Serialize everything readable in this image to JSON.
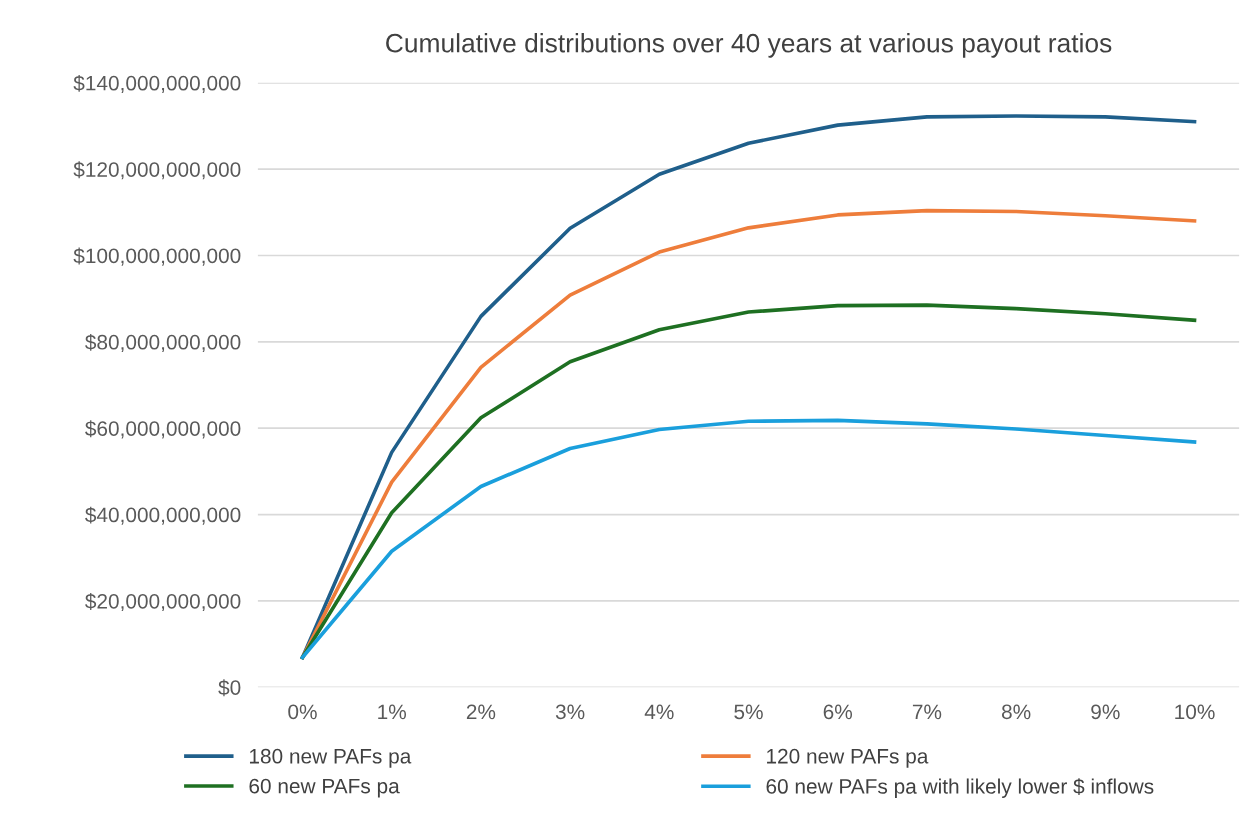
{
  "chart_data": {
    "type": "line",
    "title": "Cumulative distributions over 40 years at various payout ratios",
    "categories": [
      "0%",
      "1%",
      "2%",
      "3%",
      "4%",
      "5%",
      "6%",
      "7%",
      "8%",
      "9%",
      "10%"
    ],
    "series": [
      {
        "name": "180 new PAFs pa",
        "color": "#1f5f8b",
        "values": [
          6900000000,
          54400000000,
          85900000000,
          106300000000,
          118800000000,
          126000000000,
          130200000000,
          132100000000,
          132300000000,
          132100000000,
          131000000000
        ]
      },
      {
        "name": "120 new PAFs pa",
        "color": "#ee7d3b",
        "values": [
          6900000000,
          47500000000,
          74100000000,
          90800000000,
          100800000000,
          106400000000,
          109400000000,
          110400000000,
          110200000000,
          109200000000,
          108000000000
        ]
      },
      {
        "name": "60 new PAFs pa",
        "color": "#1e7022",
        "values": [
          6900000000,
          40400000000,
          62400000000,
          75400000000,
          82800000000,
          86900000000,
          88400000000,
          88500000000,
          87700000000,
          86500000000,
          85000000000
        ]
      },
      {
        "name": "60 new PAFs pa with likely lower $ inflows",
        "color": "#1a9fdc",
        "values": [
          6900000000,
          31500000000,
          46500000000,
          55300000000,
          59700000000,
          61600000000,
          61800000000,
          61000000000,
          59800000000,
          58300000000,
          56800000000
        ]
      }
    ],
    "ylim": [
      0,
      140000000000
    ],
    "yticks": [
      {
        "value": 0,
        "label": "$0"
      },
      {
        "value": 20000000000,
        "label": "$20,000,000,000"
      },
      {
        "value": 40000000000,
        "label": "$40,000,000,000"
      },
      {
        "value": 60000000000,
        "label": "$60,000,000,000"
      },
      {
        "value": 80000000000,
        "label": "$80,000,000,000"
      },
      {
        "value": 100000000000,
        "label": "$100,000,000,000"
      },
      {
        "value": 120000000000,
        "label": "$120,000,000,000"
      },
      {
        "value": 140000000000,
        "label": "$140,000,000,000"
      }
    ],
    "grid": "y",
    "legend": "bottom",
    "marker": "none",
    "line_style": "solid"
  }
}
